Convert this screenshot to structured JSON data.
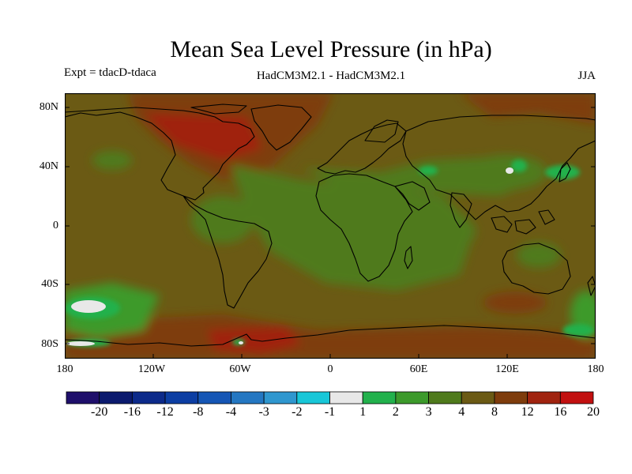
{
  "header": {
    "title": "Mean Sea Level Pressure (in hPa)",
    "expt": "Expt = tdacD-tdaca",
    "models": "HadCM3M2.1 - HadCM3M2.1",
    "season": "JJA"
  },
  "axes": {
    "lat_labels": [
      "80N",
      "40N",
      "0",
      "40S",
      "80S"
    ],
    "lon_labels": [
      "180",
      "120W",
      "60W",
      "0",
      "60E",
      "120E",
      "180"
    ]
  },
  "colorbar": {
    "colors": [
      "#1f0f6b",
      "#0b1a6e",
      "#0c2a8a",
      "#0c3ea3",
      "#1556b5",
      "#2477c2",
      "#2f97cf",
      "#18c7d8",
      "#e8e8e8",
      "#22b14c",
      "#3c9a2b",
      "#4f7a1c",
      "#6b5a14",
      "#7e3c0c",
      "#a0230f",
      "#c21010"
    ],
    "labels": [
      "-20",
      "-16",
      "-12",
      "-8",
      "-4",
      "-3",
      "-2",
      "-1",
      "1",
      "2",
      "3",
      "4",
      "8",
      "12",
      "16",
      "20"
    ]
  }
}
